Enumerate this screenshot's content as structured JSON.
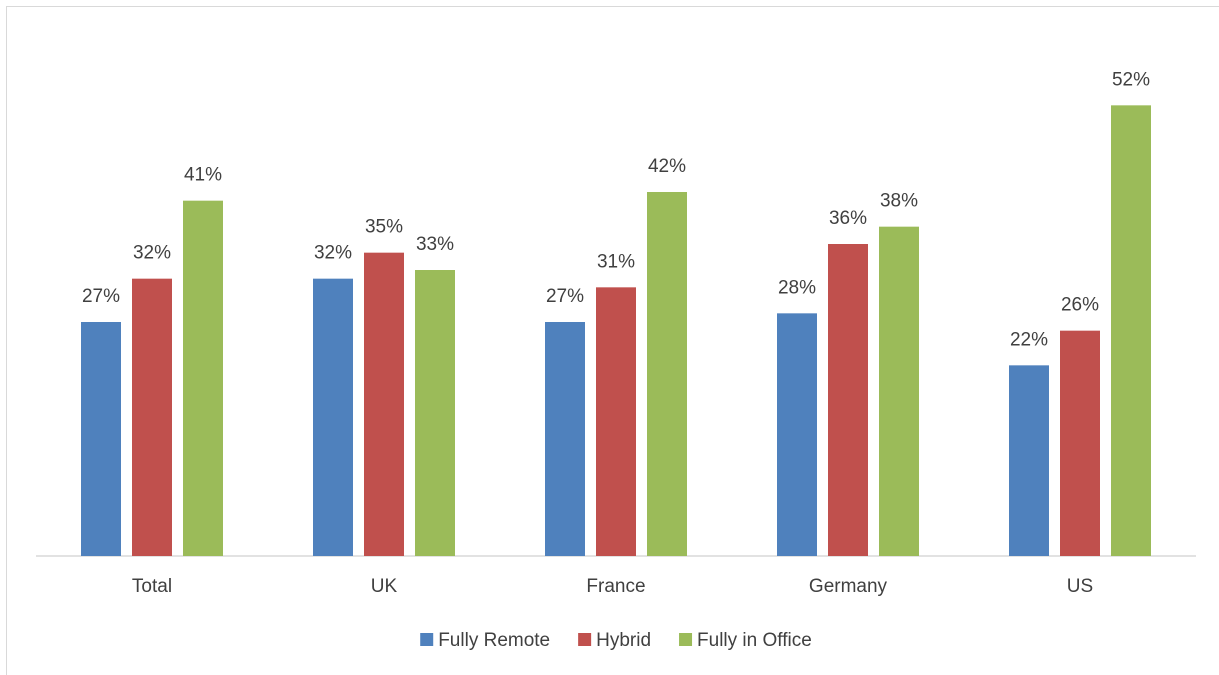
{
  "chart_data": {
    "type": "bar",
    "categories": [
      "Total",
      "UK",
      "France",
      "Germany",
      "US"
    ],
    "series": [
      {
        "name": "Fully Remote",
        "color": "#4f81bd",
        "values": [
          27,
          32,
          27,
          28,
          22
        ],
        "value_labels": [
          "27%",
          "32%",
          "27%",
          "28%",
          "22%"
        ]
      },
      {
        "name": "Hybrid",
        "color": "#c0504d",
        "values": [
          32,
          35,
          31,
          36,
          26
        ],
        "value_labels": [
          "32%",
          "35%",
          "31%",
          "36%",
          "26%"
        ]
      },
      {
        "name": "Fully in Office",
        "color": "#9bbb59",
        "values": [
          41,
          33,
          42,
          38,
          52
        ],
        "value_labels": [
          "41%",
          "33%",
          "42%",
          "38%",
          "52%"
        ]
      }
    ],
    "ylim": [
      0,
      60
    ],
    "legend": "bottom"
  }
}
